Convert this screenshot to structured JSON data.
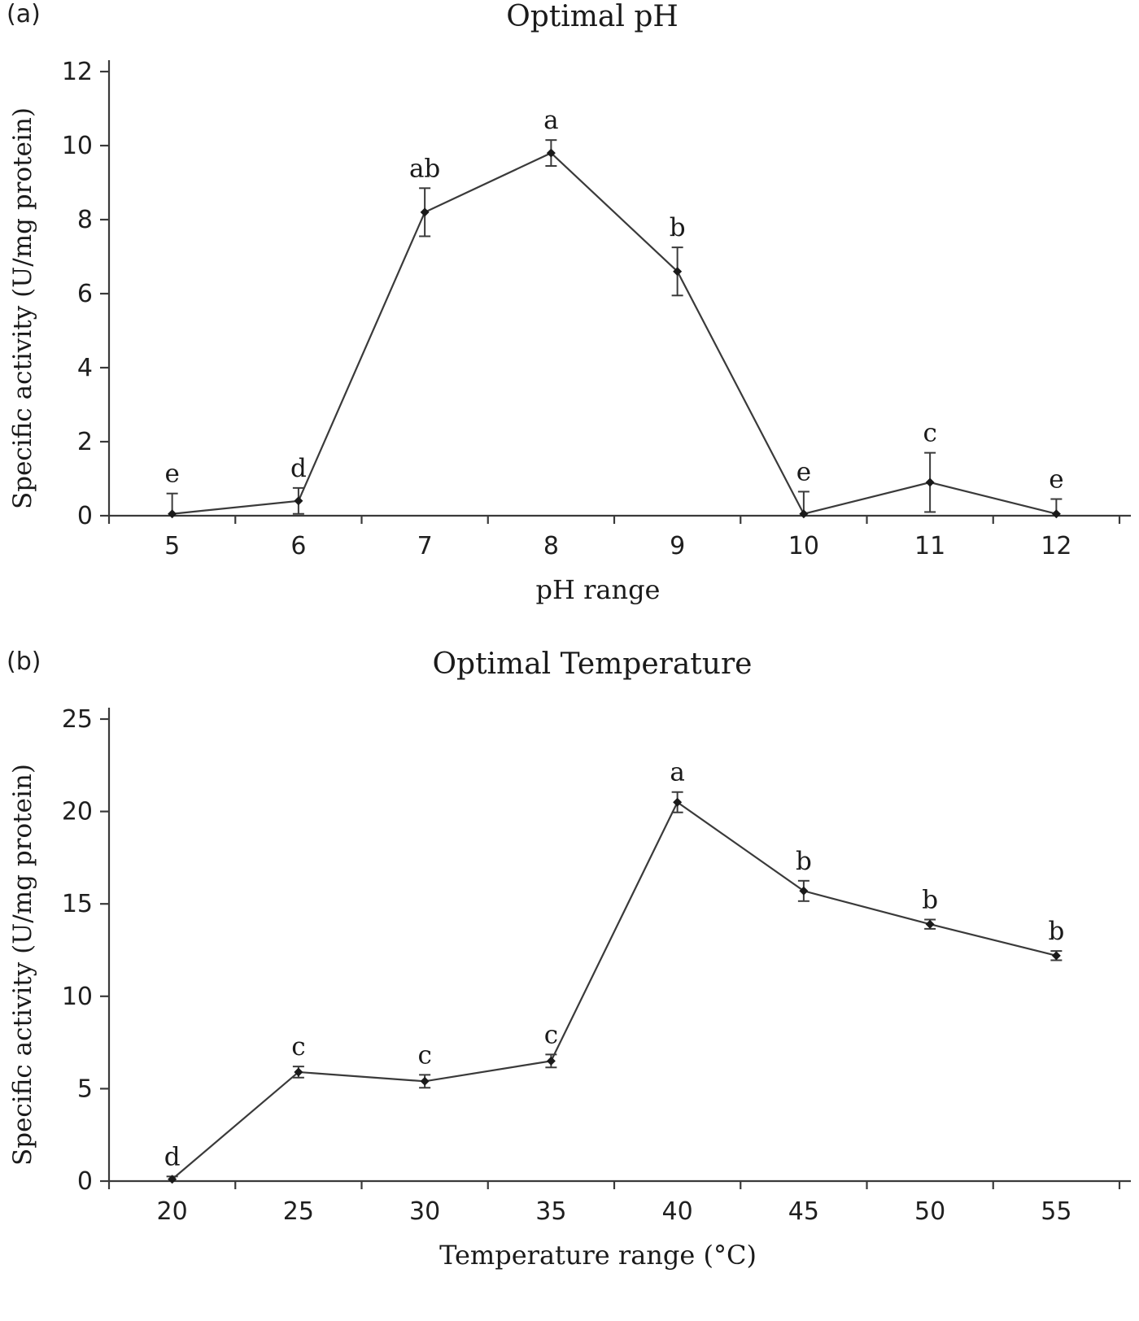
{
  "style": {
    "background": "#ffffff",
    "axis_color": "#3a3a3a",
    "marker_color": "#1a1a1a",
    "text_color": "#1f1f1f"
  },
  "chart_data": [
    {
      "type": "line",
      "panel_label": "(a)",
      "title": "Optimal pH",
      "xlabel": "pH range",
      "ylabel": "Specific activity (U/mg protein)",
      "categories": [
        5,
        6,
        7,
        8,
        9,
        10,
        11,
        12
      ],
      "values": [
        0.05,
        0.4,
        8.2,
        9.8,
        6.6,
        0.05,
        0.9,
        0.05
      ],
      "errors": [
        0.55,
        0.35,
        0.65,
        0.35,
        0.65,
        0.6,
        0.8,
        0.4
      ],
      "point_labels": [
        "e",
        "d",
        "ab",
        "a",
        "b",
        "e",
        "c",
        "e"
      ],
      "ylim": [
        0,
        12
      ],
      "yticks": [
        0,
        2,
        4,
        6,
        8,
        10,
        12
      ],
      "grid": false,
      "legend": "none",
      "error_bars": true
    },
    {
      "type": "line",
      "panel_label": "(b)",
      "title": "Optimal Temperature",
      "xlabel": "Temperature range (°C)",
      "ylabel": "Specific activity (U/mg protein)",
      "categories": [
        20,
        25,
        30,
        35,
        40,
        45,
        50,
        55
      ],
      "values": [
        0.1,
        5.9,
        5.4,
        6.5,
        20.5,
        15.7,
        13.9,
        12.2
      ],
      "errors": [
        0.15,
        0.3,
        0.35,
        0.35,
        0.55,
        0.55,
        0.25,
        0.25
      ],
      "point_labels": [
        "d",
        "c",
        "c",
        "c",
        "a",
        "b",
        "b",
        "b"
      ],
      "ylim": [
        0,
        25
      ],
      "yticks": [
        0,
        5,
        10,
        15,
        20,
        25
      ],
      "grid": false,
      "legend": "none",
      "error_bars": true
    }
  ]
}
